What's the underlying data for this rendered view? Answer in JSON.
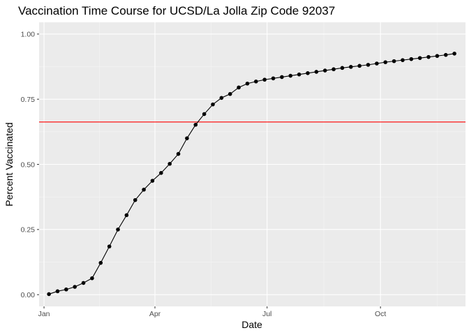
{
  "chart_data": {
    "type": "line",
    "title": "Vaccination Time Course for UCSD/La Jolla Zip Code 92037",
    "xlabel": "Date",
    "ylabel": "Percent Vaccinated",
    "xlim": [
      "2020-12-28",
      "2021-12-09"
    ],
    "ylim": [
      -0.045,
      1.045
    ],
    "x_ticks": [
      {
        "date": "2021-01-01",
        "label": "Jan"
      },
      {
        "date": "2021-04-01",
        "label": "Apr"
      },
      {
        "date": "2021-07-01",
        "label": "Jul"
      },
      {
        "date": "2021-10-01",
        "label": "Oct"
      }
    ],
    "y_ticks": [
      {
        "value": 0,
        "label": "0.00"
      },
      {
        "value": 0.25,
        "label": "0.25"
      },
      {
        "value": 0.5,
        "label": "0.50"
      },
      {
        "value": 0.75,
        "label": "0.75"
      },
      {
        "value": 1,
        "label": "1.00"
      }
    ],
    "grid": true,
    "reference_line": {
      "y": 0.6625,
      "color": "#ff0000"
    },
    "series": [
      {
        "color": "#000000",
        "x": [
          "2021-01-05",
          "2021-01-12",
          "2021-01-19",
          "2021-01-26",
          "2021-02-02",
          "2021-02-09",
          "2021-02-16",
          "2021-02-23",
          "2021-03-02",
          "2021-03-09",
          "2021-03-16",
          "2021-03-23",
          "2021-03-30",
          "2021-04-06",
          "2021-04-13",
          "2021-04-20",
          "2021-04-27",
          "2021-05-04",
          "2021-05-11",
          "2021-05-18",
          "2021-05-25",
          "2021-06-01",
          "2021-06-08",
          "2021-06-15",
          "2021-06-22",
          "2021-06-29",
          "2021-07-06",
          "2021-07-13",
          "2021-07-20",
          "2021-07-27",
          "2021-08-03",
          "2021-08-10",
          "2021-08-17",
          "2021-08-24",
          "2021-08-31",
          "2021-09-07",
          "2021-09-14",
          "2021-09-21",
          "2021-09-28",
          "2021-10-05",
          "2021-10-12",
          "2021-10-19",
          "2021-10-26",
          "2021-11-02",
          "2021-11-09",
          "2021-11-16",
          "2021-11-23",
          "2021-11-30"
        ],
        "y": [
          0.002,
          0.013,
          0.02,
          0.03,
          0.045,
          0.063,
          0.122,
          0.185,
          0.25,
          0.305,
          0.363,
          0.403,
          0.437,
          0.467,
          0.502,
          0.54,
          0.6,
          0.652,
          0.693,
          0.73,
          0.755,
          0.77,
          0.795,
          0.81,
          0.818,
          0.825,
          0.83,
          0.835,
          0.84,
          0.845,
          0.85,
          0.855,
          0.86,
          0.865,
          0.87,
          0.874,
          0.878,
          0.882,
          0.887,
          0.892,
          0.896,
          0.9,
          0.904,
          0.908,
          0.912,
          0.916,
          0.92,
          0.925
        ]
      }
    ]
  }
}
